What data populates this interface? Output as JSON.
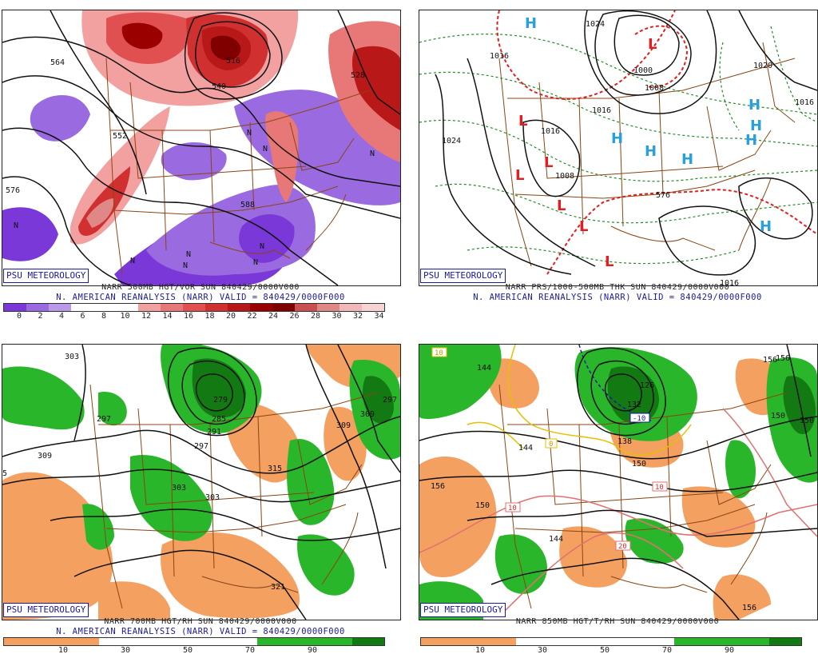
{
  "colors": {
    "vort_neg": [
      "#7a38d8",
      "#9a6ae0",
      "#b89ae8"
    ],
    "vort_pos": [
      "#f2a0a0",
      "#e87878",
      "#e05050",
      "#d03030",
      "#b81818",
      "#9a0000",
      "#800000",
      "#c85050",
      "#e08888",
      "#f0b8b8"
    ],
    "rh_dry": "#f3a060",
    "rh_moist": "#29b62b",
    "rh_very_moist": "#137a13",
    "state_lines": "#8b4513",
    "thickness": "#238b23",
    "high_color": "#27a0e0",
    "low_color": "#e02020",
    "brand_blue": "#1a1aa0"
  },
  "panels": [
    {
      "id": "p1",
      "brand": "PSU METEOROLOGY",
      "title": "NARR 500MB HGT/VOR SUN 840429/0000V000",
      "subtitle": "N. AMERICAN REANALYSIS (NARR) VALID = 840429/0000F000",
      "colorbar_labels": [
        "0",
        "2",
        "4",
        "6",
        "8",
        "10",
        "12",
        "14",
        "16",
        "18",
        "20",
        "22",
        "24",
        "26",
        "28",
        "30",
        "32",
        "34"
      ],
      "contour_labels": [
        "564",
        "576",
        "552",
        "540",
        "516",
        "528",
        "588"
      ],
      "symbols": [
        "N",
        "N",
        "N",
        "N",
        "N",
        "N",
        "N",
        "N",
        "N"
      ]
    },
    {
      "id": "p2",
      "brand": "PSU METEOROLOGY",
      "title": "NARR PRS/1000-500MB THK SUN 840429/0000V000",
      "subtitle": "N. AMERICAN REANALYSIS (NARR) VALID = 840429/0000F000",
      "contour_labels": [
        "1024",
        "1016",
        "1008",
        "1000",
        "1008",
        "1016",
        "1020",
        "1024",
        "1016",
        "1016",
        "1016",
        "576"
      ],
      "highs": [
        "H",
        "H",
        "H",
        "H",
        "H",
        "H",
        "H",
        "H"
      ],
      "lows": [
        "L",
        "L",
        "L",
        "L",
        "L",
        "L",
        "L"
      ]
    },
    {
      "id": "p3",
      "brand": "PSU METEOROLOGY",
      "title": "NARR 700MB HGT/RH SUN 840429/0000V000",
      "subtitle": "N. AMERICAN REANALYSIS (NARR) VALID = 840429/0000F000",
      "colorbar_labels": [
        "10",
        "30",
        "50",
        "70",
        "90"
      ],
      "contour_labels": [
        "303",
        "309",
        "297",
        "279",
        "285",
        "291",
        "297",
        "315",
        "309",
        "303",
        "297",
        "303",
        "309",
        "321",
        "5"
      ]
    },
    {
      "id": "p4",
      "brand": "PSU METEOROLOGY",
      "title": "NARR 850MB HGT/T/RH SUN 840429/0000V000",
      "subtitle": "",
      "colorbar_labels": [
        "10",
        "30",
        "50",
        "70",
        "90"
      ],
      "contour_labels": [
        "156",
        "150",
        "144",
        "126",
        "132",
        "138",
        "150",
        "156",
        "150",
        "144",
        "150",
        "156",
        "156",
        "144"
      ],
      "temp_labels": [
        "10",
        "0",
        "-10",
        "10",
        "10",
        "20"
      ]
    }
  ]
}
